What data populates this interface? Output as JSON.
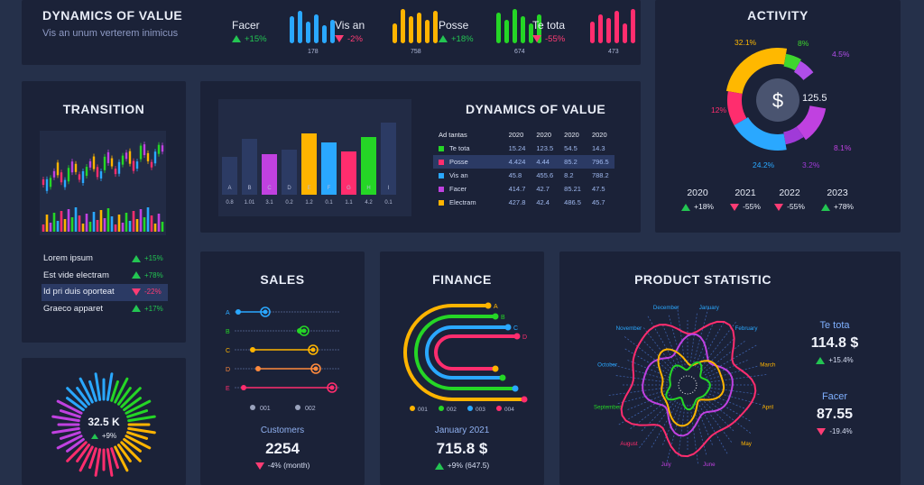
{
  "header": {
    "title": "DYNAMICS OF VALUE",
    "subtitle": "Vis an unum verterem inimicus",
    "kpis": [
      {
        "label": "Facer",
        "change": "+15%",
        "dir": "up",
        "value": "178",
        "color": "#2aa8ff"
      },
      {
        "label": "Vis an",
        "change": "-2%",
        "dir": "down",
        "value": "758",
        "color": "#ffb400"
      },
      {
        "label": "Posse",
        "change": "+18%",
        "dir": "up",
        "value": "674",
        "color": "#25d626"
      },
      {
        "label": "Te tota",
        "change": "-55%",
        "dir": "down",
        "value": "473",
        "color": "#ff2d6e"
      }
    ]
  },
  "activity": {
    "title": "ACTIVITY",
    "center_icon": "dollar-icon",
    "center_value": "125.5",
    "slices": [
      {
        "label": "32.1%",
        "color": "#ffb800"
      },
      {
        "label": "8%",
        "color": "#3fd62e"
      },
      {
        "label": "4.5%",
        "color": "#b04ee8"
      },
      {
        "label": "8.1%",
        "color": "#c041e0"
      },
      {
        "label": "3.2%",
        "color": "#a03ad8"
      },
      {
        "label": "24.2%",
        "color": "#2aa8ff"
      },
      {
        "label": "12%",
        "color": "#ff2d6e"
      }
    ],
    "years": [
      {
        "year": "2020",
        "change": "+18%",
        "dir": "up"
      },
      {
        "year": "2021",
        "change": "-55%",
        "dir": "down"
      },
      {
        "year": "2022",
        "change": "-55%",
        "dir": "down"
      },
      {
        "year": "2023",
        "change": "+78%",
        "dir": "up"
      }
    ]
  },
  "transition": {
    "title": "TRANSITION",
    "items": [
      {
        "label": "Lorem ipsum",
        "change": "+15%",
        "dir": "up"
      },
      {
        "label": "Est vide electram",
        "change": "+78%",
        "dir": "up"
      },
      {
        "label": "Id pri duis oporteat",
        "change": "-22%",
        "dir": "down",
        "highlight": true
      },
      {
        "label": "Graeco apparet",
        "change": "+17%",
        "dir": "up"
      }
    ]
  },
  "dynamics": {
    "title": "DYNAMICS OF VALUE",
    "headers": [
      "Ad tantas",
      "2020",
      "2020",
      "2020",
      "2020"
    ],
    "rows": [
      {
        "name": "Te tota",
        "color": "#25d626",
        "cells": [
          "15.24",
          "123.5",
          "54.5",
          "14.3"
        ]
      },
      {
        "name": "Posse",
        "color": "#ff2d6e",
        "cells": [
          "4.424",
          "4.44",
          "85.2",
          "796.5"
        ],
        "highlight": true
      },
      {
        "name": "Vis an",
        "color": "#2aa8ff",
        "cells": [
          "45.8",
          "455.6",
          "8.2",
          "788.2"
        ]
      },
      {
        "name": "Facer",
        "color": "#c041e0",
        "cells": [
          "414.7",
          "42.7",
          "85.21",
          "47.5"
        ]
      },
      {
        "name": "Electram",
        "color": "#ffb400",
        "cells": [
          "427.8",
          "42.4",
          "486.5",
          "45.7"
        ]
      }
    ],
    "bars": [
      {
        "letter": "A",
        "value": "0.8",
        "color": "#2c3b64",
        "level": 0.42
      },
      {
        "letter": "B",
        "value": "1.01",
        "color": "#2c3b64",
        "level": 0.62
      },
      {
        "letter": "C",
        "value": "3.1",
        "color": "#c041e0",
        "level": 0.45
      },
      {
        "letter": "D",
        "value": "0.2",
        "color": "#2c3b64",
        "level": 0.5
      },
      {
        "letter": "E",
        "value": "1.2",
        "color": "#ffb400",
        "level": 0.68
      },
      {
        "letter": "F",
        "value": "0.1",
        "color": "#2aa8ff",
        "level": 0.58
      },
      {
        "letter": "G",
        "value": "1.1",
        "color": "#ff2d6e",
        "level": 0.48
      },
      {
        "letter": "H",
        "value": "4.2",
        "color": "#25d626",
        "level": 0.64
      },
      {
        "letter": "I",
        "value": "0.1",
        "color": "#2c3b64",
        "level": 0.8
      }
    ]
  },
  "sales": {
    "title": "SALES",
    "rows": [
      "A",
      "B",
      "C",
      "D",
      "E"
    ],
    "legend": [
      "001",
      "002"
    ],
    "caption": "Customers",
    "value": "2254",
    "change": "-4% (month)",
    "dir": "down"
  },
  "finance": {
    "title": "FINANCE",
    "arcs": [
      {
        "letter": "A",
        "color": "#ffb400"
      },
      {
        "letter": "B",
        "color": "#25d626"
      },
      {
        "letter": "C",
        "color": "#2aa8ff"
      },
      {
        "letter": "D",
        "color": "#ff2d6e"
      }
    ],
    "legend": [
      {
        "label": "001",
        "color": "#ffb400"
      },
      {
        "label": "002",
        "color": "#25d626"
      },
      {
        "label": "003",
        "color": "#2aa8ff"
      },
      {
        "label": "004",
        "color": "#ff2d6e"
      }
    ],
    "caption": "January 2021",
    "value": "715.8 $",
    "change": "+9% (647.5)",
    "dir": "up"
  },
  "product": {
    "title": "PRODUCT STATISTIC",
    "months": [
      "January",
      "February",
      "March",
      "April",
      "May",
      "June",
      "July",
      "August",
      "September",
      "October",
      "November",
      "December"
    ],
    "month_colors": [
      "#2aa8ff",
      "#2aa8ff",
      "#ffb400",
      "#ffb400",
      "#ffb400",
      "#c041e0",
      "#c041e0",
      "#ff2d6e",
      "#25d626",
      "#2aa8ff",
      "#2aa8ff",
      "#2aa8ff"
    ],
    "stats": [
      {
        "label": "Te tota",
        "value": "114.8 $",
        "change": "+15.4%",
        "dir": "up"
      },
      {
        "label": "Facer",
        "value": "87.55",
        "change": "-19.4%",
        "dir": "down"
      }
    ]
  },
  "gauge": {
    "value": "32.5 K",
    "change": "+9%",
    "dir": "up"
  }
}
